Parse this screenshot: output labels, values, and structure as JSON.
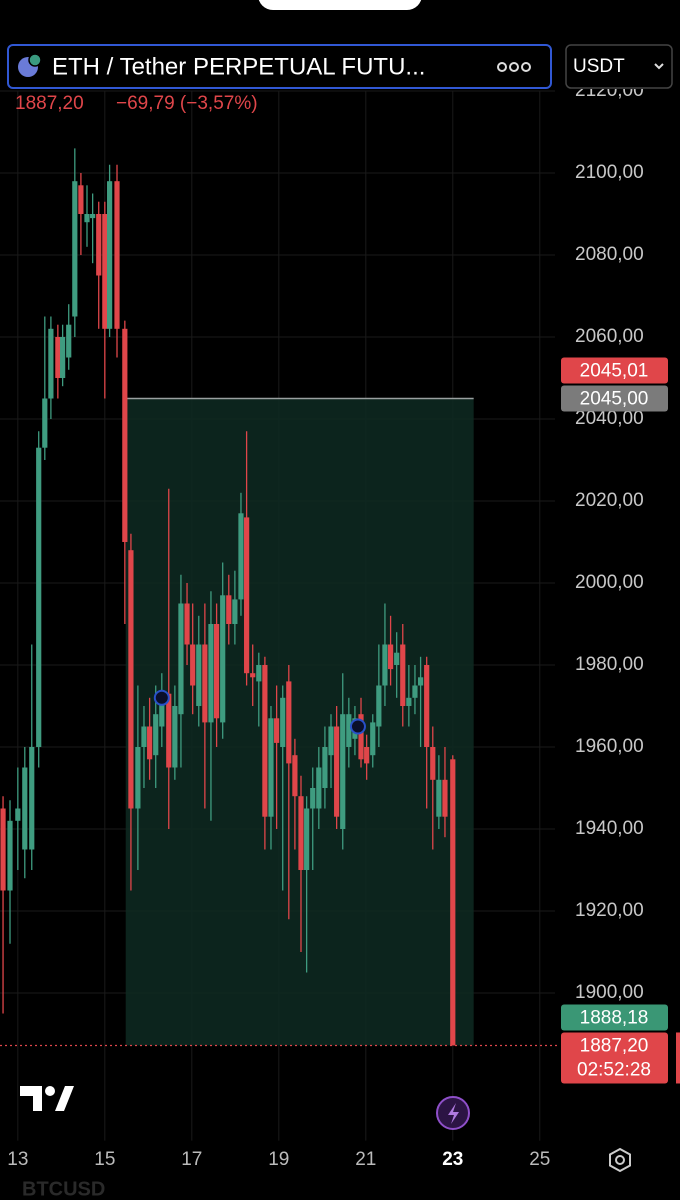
{
  "header": {
    "title": "ETH / Tether PERPETUAL FUTU...",
    "quote_currency": "USDT",
    "last_price": "1887,20",
    "change": "−69,79 (−3,57%)"
  },
  "footer": {
    "symbol": "BTCUSD"
  },
  "chart_data": {
    "type": "candlestick",
    "x": [
      12.66,
      12.82,
      13.0,
      13.16,
      13.32,
      13.48,
      13.62,
      13.76,
      13.92,
      14.03,
      14.17,
      14.31,
      14.45,
      14.59,
      14.72,
      14.86,
      15.0,
      15.11,
      15.28,
      15.46,
      15.6,
      15.76,
      15.9,
      16.03,
      16.17,
      16.31,
      16.47,
      16.61,
      16.75,
      16.89,
      17.02,
      17.16,
      17.3,
      17.44,
      17.57,
      17.71,
      17.85,
      17.99,
      18.13,
      18.26,
      18.4,
      18.54,
      18.68,
      18.82,
      18.95,
      19.09,
      19.23,
      19.37,
      19.51,
      19.64,
      19.78,
      19.92,
      20.06,
      20.2,
      20.33,
      20.47,
      20.61,
      20.75,
      20.89,
      21.02,
      21.16,
      21.3,
      21.44,
      21.57,
      21.71,
      21.85,
      21.99,
      22.13,
      22.26,
      22.4,
      22.54,
      22.68,
      22.82,
      23.0
    ],
    "open": [
      1945,
      1925,
      1942,
      1935,
      1935,
      1960,
      2033,
      2045,
      2060,
      2050,
      2055,
      2065,
      2097,
      2088,
      2089,
      2090,
      2090,
      2062,
      2098,
      2062,
      2008,
      1945,
      1960,
      1965,
      1958,
      1965,
      1973,
      1955,
      1968,
      1995,
      1985,
      1970,
      1985,
      1966,
      1990,
      1966,
      1997,
      1990,
      1996,
      2016,
      1978,
      1976,
      1980,
      1943,
      1967,
      1960,
      1976,
      1958,
      1948,
      1930,
      1945,
      1945,
      1950,
      1958,
      1965,
      1940,
      1960,
      1962,
      1968,
      1960,
      1958,
      1965,
      1975,
      1985,
      1980,
      1985,
      1970,
      1972,
      1975,
      1980,
      1960,
      1943,
      1952,
      1957
    ],
    "high": [
      1948,
      1947,
      1955,
      1960,
      1985,
      2037,
      2065,
      2065,
      2063,
      2063,
      2068,
      2106,
      2100,
      2097,
      2095,
      2093,
      2093,
      2102,
      2102,
      2064,
      2012,
      1975,
      1970,
      1972,
      1975,
      1978,
      2023,
      1975,
      2002,
      2000,
      1995,
      1992,
      1995,
      1998,
      1995,
      2005,
      2002,
      2003,
      2022,
      2037,
      1985,
      1983,
      1982,
      1970,
      1975,
      1975,
      1980,
      1962,
      1953,
      1948,
      1955,
      1960,
      1965,
      1968,
      1970,
      1978,
      1972,
      1970,
      1972,
      1963,
      1968,
      1985,
      1995,
      1992,
      1988,
      1990,
      1980,
      1980,
      1982,
      1982,
      1965,
      1958,
      1960,
      1958
    ],
    "low": [
      1895,
      1912,
      1930,
      1928,
      1930,
      1955,
      2030,
      2040,
      2045,
      2048,
      2052,
      2060,
      2080,
      2082,
      2078,
      2062,
      2045,
      2060,
      2055,
      1990,
      1925,
      1930,
      1950,
      1952,
      1950,
      1960,
      1940,
      1952,
      1955,
      1980,
      1968,
      1965,
      1945,
      1942,
      1960,
      1962,
      1985,
      1985,
      1992,
      1975,
      1970,
      1965,
      1935,
      1935,
      1940,
      1925,
      1918,
      1935,
      1910,
      1905,
      1930,
      1940,
      1945,
      1950,
      1940,
      1935,
      1955,
      1958,
      1955,
      1952,
      1955,
      1960,
      1970,
      1975,
      1972,
      1965,
      1965,
      1968,
      1960,
      1945,
      1935,
      1940,
      1938,
      1887.2
    ],
    "close": [
      1925,
      1942,
      1945,
      1955,
      1960,
      2033,
      2045,
      2062,
      2050,
      2060,
      2063,
      2098,
      2090,
      2090,
      2090,
      2075,
      2062,
      2098,
      2062,
      2010,
      1945,
      1960,
      1965,
      1957,
      1968,
      1973,
      1955,
      1970,
      1995,
      1985,
      1975,
      1985,
      1966,
      1990,
      1967,
      1997,
      1990,
      1996,
      2017,
      1978,
      1977,
      1980,
      1943,
      1967,
      1961,
      1972,
      1956,
      1948,
      1930,
      1945,
      1950,
      1955,
      1960,
      1965,
      1943,
      1968,
      1968,
      1967,
      1957,
      1956,
      1966,
      1975,
      1985,
      1979,
      1983,
      1970,
      1972,
      1975,
      1977,
      1960,
      1952,
      1952,
      1943,
      1887.2
    ],
    "up_color": "#3f9c80",
    "down_color": "#e0464a",
    "range_box": {
      "x": [
        15.48,
        23.48
      ],
      "y": [
        1887.2,
        2045
      ],
      "color": "#0e2a22",
      "line_color": "#9aa0a0"
    },
    "markers": [
      {
        "x": 16.31,
        "y": 1972
      },
      {
        "x": 20.82,
        "y": 1965
      }
    ],
    "price_labels": [
      {
        "value": 2045.01,
        "label": "2045,01",
        "color": "#e0464a"
      },
      {
        "value": 2045.0,
        "label": "2045,00",
        "color": "#7b7b7b"
      },
      {
        "value": 1888.18,
        "label": "1888,18",
        "color": "#3a9775"
      },
      {
        "value": 1887.2,
        "label": "1887,20",
        "color": "#e0464a",
        "countdown": "02:52:28"
      }
    ],
    "xlim": [
      12.59,
      25.35
    ],
    "xticks": [
      13,
      15,
      17,
      19,
      21,
      23,
      25
    ],
    "ylim": [
      1864,
      2120
    ],
    "yticks": [
      {
        "value": 1900,
        "label": "1900,00"
      },
      {
        "value": 1920,
        "label": "1920,00"
      },
      {
        "value": 1940,
        "label": "1940,00"
      },
      {
        "value": 1960,
        "label": "1960,00"
      },
      {
        "value": 1980,
        "label": "1980,00"
      },
      {
        "value": 2000,
        "label": "2000,00"
      },
      {
        "value": 2020,
        "label": "2020,00"
      },
      {
        "value": 2040,
        "label": "2040,00"
      },
      {
        "value": 2060,
        "label": "2060,00"
      },
      {
        "value": 2080,
        "label": "2080,00"
      },
      {
        "value": 2100,
        "label": "2100,00"
      },
      {
        "value": 2120,
        "label": "2120,00"
      }
    ],
    "grid": true
  }
}
